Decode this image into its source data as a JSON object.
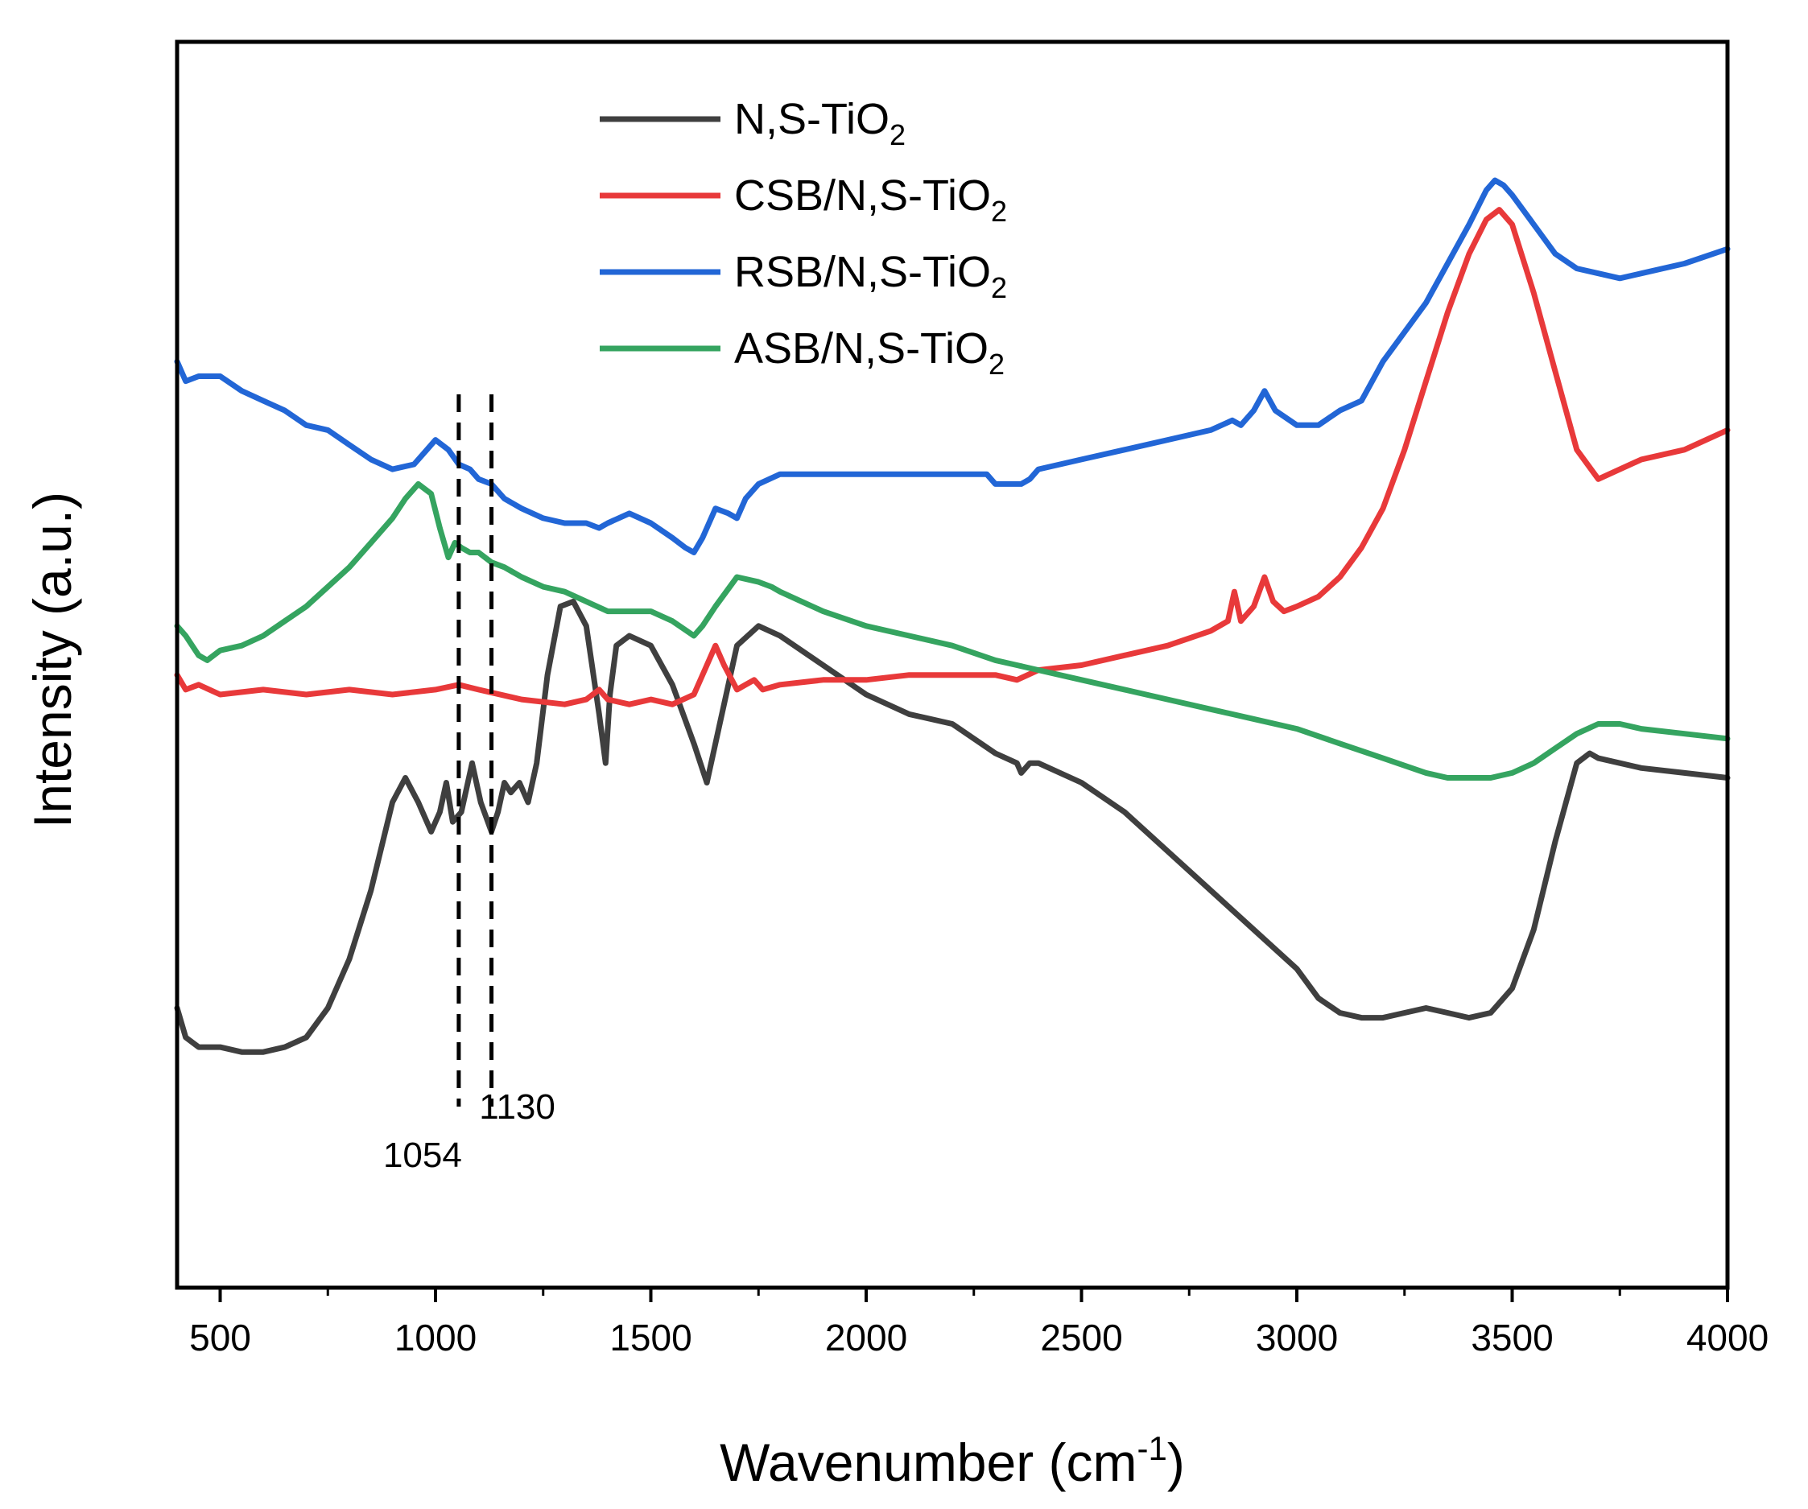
{
  "chart_data": {
    "type": "line",
    "title": "",
    "xlabel": "Wavenumber (cm",
    "xlabel_sup": "-1",
    "xlabel_close": ")",
    "ylabel": "Intensity (a.u.)",
    "xlim": [
      400,
      4000
    ],
    "ylim": [
      0,
      100
    ],
    "x_ticks": [
      500,
      1000,
      1500,
      2000,
      2500,
      3000,
      3500,
      4000
    ],
    "x_tick_labels": [
      "500",
      "1000",
      "1500",
      "2000",
      "2500",
      "3000",
      "3500",
      "4000"
    ],
    "y_ticks_shown": false,
    "grid": false,
    "legend_position": "top-center",
    "series": [
      {
        "name": "N,S-TiO2",
        "name_main": "N,S-TiO",
        "name_sub": "2",
        "color": "#3f3f3f",
        "x": [
          400,
          420,
          450,
          500,
          550,
          600,
          650,
          700,
          750,
          800,
          850,
          900,
          930,
          960,
          990,
          1010,
          1025,
          1040,
          1060,
          1085,
          1105,
          1130,
          1145,
          1160,
          1175,
          1195,
          1215,
          1235,
          1260,
          1290,
          1320,
          1350,
          1380,
          1395,
          1405,
          1420,
          1450,
          1500,
          1550,
          1600,
          1630,
          1660,
          1700,
          1750,
          1800,
          1900,
          2000,
          2100,
          2200,
          2300,
          2350,
          2360,
          2380,
          2400,
          2500,
          2600,
          2700,
          2800,
          2900,
          3000,
          3050,
          3100,
          3150,
          3200,
          3250,
          3300,
          3350,
          3400,
          3450,
          3500,
          3550,
          3600,
          3650,
          3680,
          3700,
          3750,
          3800,
          3900,
          4000
        ],
        "y": [
          15,
          12,
          11,
          11,
          10.5,
          10.5,
          11,
          12,
          15,
          20,
          27,
          36,
          38.5,
          36,
          33,
          35,
          38,
          34,
          35,
          40,
          36,
          33,
          35,
          38,
          37,
          38,
          36,
          40,
          49,
          56,
          56.5,
          54,
          45,
          40,
          47,
          52,
          53,
          52,
          48,
          42,
          38,
          44,
          52,
          54,
          53,
          50,
          47,
          45,
          44,
          41,
          40,
          39,
          40,
          40,
          38,
          35,
          31,
          27,
          23,
          19,
          16,
          14.5,
          14,
          14,
          14.5,
          15,
          14.5,
          14,
          14.5,
          17,
          23,
          32,
          40,
          41,
          40.5,
          40,
          39.5,
          39,
          38.5
        ]
      },
      {
        "name": "CSB/N,S-TiO2",
        "name_main": "CSB/N,S-TiO",
        "name_sub": "2",
        "color": "#e8393a",
        "x": [
          400,
          420,
          450,
          500,
          600,
          700,
          800,
          900,
          1000,
          1054,
          1100,
          1200,
          1300,
          1350,
          1380,
          1400,
          1450,
          1500,
          1550,
          1600,
          1630,
          1650,
          1670,
          1700,
          1720,
          1740,
          1760,
          1800,
          1900,
          2000,
          2100,
          2200,
          2300,
          2350,
          2400,
          2500,
          2600,
          2700,
          2800,
          2840,
          2855,
          2870,
          2900,
          2925,
          2945,
          2970,
          3000,
          3050,
          3100,
          3150,
          3200,
          3250,
          3300,
          3350,
          3400,
          3440,
          3470,
          3500,
          3550,
          3600,
          3650,
          3700,
          3750,
          3800,
          3900,
          4000
        ],
        "y": [
          49,
          47.5,
          48,
          47,
          47.5,
          47,
          47.5,
          47,
          47.5,
          48,
          47.5,
          46.5,
          46,
          46.5,
          47.5,
          46.5,
          46,
          46.5,
          46,
          47,
          50,
          52,
          50,
          47.5,
          48,
          48.5,
          47.5,
          48,
          48.5,
          48.5,
          49,
          49,
          49,
          48.5,
          49.5,
          50,
          51,
          52,
          53.5,
          54.5,
          57.5,
          54.5,
          56,
          59,
          56.5,
          55.5,
          56,
          57,
          59,
          62,
          66,
          72,
          79,
          86,
          92,
          95.5,
          96.5,
          95,
          88,
          80,
          72,
          69,
          70,
          71,
          72,
          74
        ]
      },
      {
        "name": "RSB/N,S-TiO2",
        "name_main": "RSB/N,S-TiO",
        "name_sub": "2",
        "color": "#2266d6",
        "x": [
          400,
          420,
          450,
          500,
          550,
          600,
          650,
          700,
          750,
          800,
          850,
          900,
          950,
          980,
          1000,
          1030,
          1054,
          1080,
          1100,
          1130,
          1160,
          1200,
          1250,
          1300,
          1350,
          1380,
          1400,
          1450,
          1500,
          1550,
          1580,
          1600,
          1620,
          1650,
          1680,
          1700,
          1720,
          1750,
          1800,
          1900,
          2000,
          2100,
          2200,
          2280,
          2300,
          2330,
          2360,
          2380,
          2400,
          2500,
          2600,
          2700,
          2800,
          2850,
          2870,
          2900,
          2925,
          2950,
          3000,
          3050,
          3100,
          3150,
          3200,
          3300,
          3400,
          3440,
          3460,
          3480,
          3500,
          3550,
          3600,
          3650,
          3700,
          3750,
          3800,
          3900,
          4000
        ],
        "y": [
          81,
          79,
          79.5,
          79.5,
          78,
          77,
          76,
          74.5,
          74,
          72.5,
          71,
          70,
          70.5,
          72,
          73,
          72,
          70.5,
          70,
          69,
          68.5,
          67,
          66,
          65,
          64.5,
          64.5,
          64,
          64.5,
          65.5,
          64.5,
          63,
          62,
          61.5,
          63,
          66,
          65.5,
          65,
          67,
          68.5,
          69.5,
          69.5,
          69.5,
          69.5,
          69.5,
          69.5,
          68.5,
          68.5,
          68.5,
          69,
          70,
          71,
          72,
          73,
          74,
          75,
          74.5,
          76,
          78,
          76,
          74.5,
          74.5,
          76,
          77,
          81,
          87,
          95,
          98.5,
          99.5,
          99,
          98,
          95,
          92,
          90.5,
          90,
          89.5,
          90,
          91,
          92.5
        ]
      },
      {
        "name": "ASB/N,S-TiO2",
        "name_main": "ASB/N,S-TiO",
        "name_sub": "2",
        "color": "#35a460",
        "x": [
          400,
          420,
          450,
          470,
          500,
          550,
          600,
          650,
          700,
          750,
          800,
          850,
          900,
          930,
          960,
          990,
          1010,
          1030,
          1045,
          1060,
          1080,
          1100,
          1130,
          1160,
          1200,
          1250,
          1300,
          1350,
          1400,
          1450,
          1500,
          1550,
          1600,
          1620,
          1650,
          1700,
          1750,
          1780,
          1800,
          1850,
          1900,
          2000,
          2100,
          2200,
          2300,
          2350,
          2400,
          2500,
          2600,
          2700,
          2800,
          2900,
          3000,
          3100,
          3200,
          3300,
          3350,
          3400,
          3450,
          3500,
          3550,
          3600,
          3650,
          3700,
          3750,
          3800,
          3900,
          4000
        ],
        "y": [
          54,
          53,
          51,
          50.5,
          51.5,
          52,
          53,
          54.5,
          56,
          58,
          60,
          62.5,
          65,
          67,
          68.5,
          67.5,
          64,
          61,
          62.5,
          62,
          61.5,
          61.5,
          60.5,
          60,
          59,
          58,
          57.5,
          56.5,
          55.5,
          55.5,
          55.5,
          54.5,
          53,
          54,
          56,
          59,
          58.5,
          58,
          57.5,
          56.5,
          55.5,
          54,
          53,
          52,
          50.5,
          50,
          49.5,
          48.5,
          47.5,
          46.5,
          45.5,
          44.5,
          43.5,
          42,
          40.5,
          39,
          38.5,
          38.5,
          38.5,
          39,
          40,
          41.5,
          43,
          44,
          44,
          43.5,
          43,
          42.5
        ]
      }
    ],
    "annotations": [
      {
        "type": "vline",
        "x": 1054,
        "label": "1054"
      },
      {
        "type": "vline",
        "x": 1130,
        "label": "1130"
      }
    ]
  }
}
